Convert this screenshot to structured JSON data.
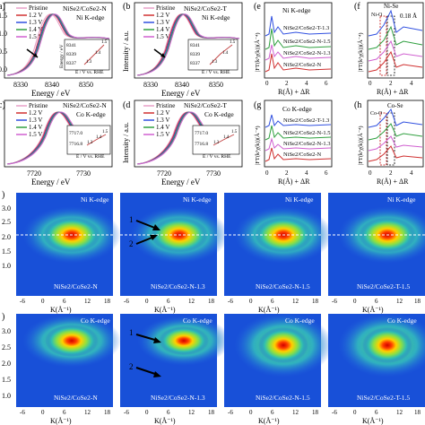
{
  "panels": {
    "a": {
      "letter": "a)",
      "legend": [
        "Pristine",
        "1.2 V",
        "1.3 V",
        "1.4 V",
        "1.5 V"
      ],
      "sample": "NiSe2/CoSe2-N",
      "edge": "Ni K-edge",
      "xlabel": "Energy / eV",
      "ticks_x": [
        "8330",
        "8340",
        "8350"
      ],
      "ticks_y": [
        "1.5",
        "1.0",
        "0.5",
        "0.0"
      ],
      "inset": {
        "ylabel": "Energy / eV",
        "xlabel": "E / V vs. RHE",
        "yticks": [
          "8341",
          "8339",
          "8337"
        ],
        "points": [
          "1.3",
          "1.4",
          "1.5"
        ]
      }
    },
    "b": {
      "letter": "(b",
      "legend": [
        "Pristine",
        "1.2 V",
        "1.3 V",
        "1.4 V",
        "1.5 V"
      ],
      "sample": "NiSe2/CoSe2-T",
      "edge": "Ni K-edge",
      "ylabel": "Intensity / a.u.",
      "xlabel": "Energy / eV",
      "ticks_x": [
        "8330",
        "8340",
        "8350"
      ],
      "inset": {
        "ylabel": "Energy / eV",
        "xlabel": "E / V vs. RHE",
        "yticks": [
          "8341",
          "8339",
          "8337"
        ],
        "points": [
          "1.3",
          "1.4",
          "1.5"
        ]
      }
    },
    "c": {
      "letter": "c)",
      "legend": [
        "Pristine",
        "1.2 V",
        "1.3 V",
        "1.4 V",
        "1.5 V"
      ],
      "sample": "NiSe2/CoSe2-N",
      "edge": "Co K-edge",
      "xlabel": "Energy / eV",
      "ticks_x": [
        "7720",
        "7730"
      ],
      "inset": {
        "ylabel": "Energy / eV",
        "xlabel": "E / V vs. RHE",
        "yticks": [
          "7717.0",
          "7716.8"
        ],
        "points": [
          "1.3",
          "1.4",
          "1.5"
        ]
      }
    },
    "d": {
      "letter": "(d",
      "legend": [
        "Pristine",
        "1.2 V",
        "1.3 V",
        "1.4 V",
        "1.5 V"
      ],
      "sample": "NiSe2/CoSe2-T",
      "edge": "Co K-edge",
      "ylabel": "Intensity / a.u.",
      "xlabel": "Energy / eV",
      "ticks_x": [
        "7720",
        "7730"
      ],
      "inset": {
        "ylabel": "Energy / eV",
        "xlabel": "E / V vs. RHE",
        "yticks": [
          "7717.0",
          "7716.8"
        ],
        "points": [
          "1.3",
          "1.4",
          "1.5"
        ]
      }
    },
    "e": {
      "letter": "(e",
      "edge": "Ni K-edge",
      "ylabel": "|FT(k³χ(k))(Å⁻⁴)",
      "xlabel": "R(Å) + ΔR",
      "ticks_x": [
        "0",
        "2",
        "4",
        "6"
      ],
      "series": [
        "NiSe2/CoSe2-T-1.3",
        "NiSe2/CoSe2-N-1.5",
        "NiSe2/CoSe2-N-1.3",
        "NiSe2/CoSe2-N"
      ]
    },
    "f": {
      "letter": "(f",
      "ylabel": "|FT(k³χ(k))(Å⁻⁴)",
      "xlabel": "R(Å) + ΔR",
      "ticks_x": [
        "0",
        "2",
        "4"
      ],
      "annotations": [
        "Ni-Se",
        "Ni-O",
        "0.18 Å"
      ]
    },
    "g": {
      "letter": "(g",
      "edge": "Co K-edge",
      "ylabel": "|FT(k³χ(k))(Å⁻⁴)",
      "xlabel": "R(Å) + ΔR",
      "ticks_x": [
        "0",
        "2",
        "4",
        "6"
      ],
      "series": [
        "NiSe2/CoSe2-T-1.3",
        "NiSe2/CoSe2-N-1.5",
        "NiSe2/CoSe2-N-1.3",
        "NiSe2/CoSe2-N"
      ]
    },
    "h": {
      "letter": "(h",
      "ylabel": "|FT(k³χ(k))(Å⁻⁴)",
      "xlabel": "R(Å) + ΔR",
      "ticks_x": [
        "0",
        "2",
        "4"
      ],
      "annotations": [
        "Co-Se",
        "Co-O"
      ]
    }
  },
  "wavelet_rows": [
    {
      "letter": ")",
      "edge": "Ni K-edge",
      "ylabel": "R(Å)",
      "yticks": [
        "3.0",
        "2.5",
        "2.0",
        "1.5",
        "1.0"
      ],
      "xlabel": "K(Å⁻¹)",
      "xticks": [
        "-6",
        "0",
        "6",
        "12",
        "18"
      ],
      "labels": [
        "NiSe2/CoSe2-N",
        "NiSe2/CoSe2-N-1.3",
        "NiSe2/CoSe2-N-1.5",
        "NiSe2/CoSe2-T-1.5"
      ],
      "arrows": [
        "1",
        "2"
      ]
    },
    {
      "letter": ")",
      "edge": "Co K-edge",
      "ylabel": "R(Å)",
      "yticks": [
        "3.0",
        "2.5",
        "2.0",
        "1.5",
        "1.0"
      ],
      "xlabel": "K(Å⁻¹)",
      "xticks": [
        "-6",
        "0",
        "6",
        "12",
        "18"
      ],
      "labels": [
        "NiSe2/CoSe2-N",
        "NiSe2/CoSe2-N-1.3",
        "NiSe2/CoSe2-N-1.5",
        "NiSe2/CoSe2-T-1.5"
      ],
      "arrows": [
        "1",
        "2"
      ]
    }
  ],
  "colors": {
    "pristine": "#e8a0c8",
    "v12": "#d03030",
    "v13": "#3050e0",
    "v14": "#30a040",
    "v15": "#d060d0",
    "wavelet_bg": "#1850d8"
  }
}
